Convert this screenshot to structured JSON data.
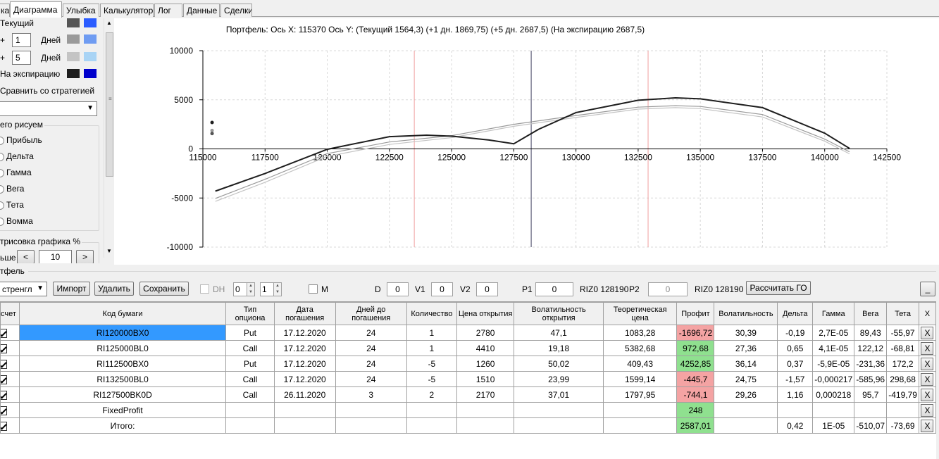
{
  "tabs": [
    "ка",
    "Диаграмма",
    "Улыбка",
    "Калькулятор",
    "Лог",
    "Данные",
    "Сделки"
  ],
  "active_tab": 1,
  "left_panel": {
    "current_label": "Текущий",
    "plus1_sign": "+",
    "plus1_value": "1",
    "plus1_unit": "Дней",
    "plus2_sign": "+",
    "plus2_value": "5",
    "plus2_unit": "Дней",
    "expiry_label": "На экспирацию",
    "compare_label": "Сравнить со стратегией",
    "draw_group_label": "его рисуем",
    "radio_items": [
      "Прибыль",
      "Дельта",
      "Гамма",
      "Вега",
      "Тета",
      "Вомма"
    ],
    "render_label": "трисовка графика %",
    "render_prefix": "ьше",
    "render_value": "10",
    "btn_less": "<",
    "btn_more": ">",
    "colors": {
      "current": [
        "#555555",
        "#2b5cff"
      ],
      "plus1": [
        "#9a9a9a",
        "#6f9cf2"
      ],
      "plus2": [
        "#c4c4c4",
        "#a9d4f5"
      ],
      "expiry": [
        "#1e1e1e",
        "#0000cc"
      ]
    }
  },
  "chart_data": {
    "type": "line",
    "title": "Портфель: Ось X: 115370 Ось Y:  (Текущий 1564,3)  (+1 дн. 1869,75)  (+5 дн. 2687,5)  (На экспирацию 2687,5)",
    "xlim": [
      115000,
      142500
    ],
    "ylim": [
      -10000,
      10000
    ],
    "x_ticks": [
      "115000",
      "117500",
      "120000",
      "122500",
      "125000",
      "127500",
      "130000",
      "132500",
      "135000",
      "137500",
      "140000",
      "142500"
    ],
    "y_ticks": [
      "10000",
      "5000",
      "0",
      "-5000",
      "-10000"
    ],
    "grid": true,
    "vertical_lines": [
      {
        "x": 123500,
        "color": "#f0a0a0"
      },
      {
        "x": 128200,
        "color": "#404060"
      },
      {
        "x": 132900,
        "color": "#f0a0a0"
      }
    ],
    "series": [
      {
        "color": "#1e1e1e",
        "x": [
          115500,
          117500,
          120000,
          122500,
          124000,
          125000,
          126500,
          127500,
          128500,
          130000,
          132500,
          134000,
          135000,
          137500,
          140000,
          141000
        ],
        "y": [
          -4300,
          -2500,
          -40,
          1250,
          1400,
          1300,
          900,
          520,
          2000,
          3700,
          4950,
          5200,
          5100,
          4200,
          1600,
          50
        ]
      },
      {
        "color": "#9a9a9a",
        "x": [
          115500,
          117500,
          120000,
          122500,
          125000,
          127500,
          130000,
          132500,
          134000,
          135000,
          137500,
          140000,
          141000
        ],
        "y": [
          -5050,
          -3100,
          -480,
          700,
          1350,
          2500,
          3400,
          4250,
          4400,
          4320,
          3500,
          1000,
          -300
        ]
      },
      {
        "color": "#c4c4c4",
        "x": [
          115500,
          117500,
          120000,
          122500,
          125000,
          127500,
          130000,
          132500,
          134000,
          135000,
          137500,
          140000,
          141000
        ],
        "y": [
          -5350,
          -3400,
          -760,
          450,
          1150,
          2300,
          3200,
          4050,
          4200,
          4100,
          3250,
          780,
          -500
        ]
      }
    ],
    "points": [
      {
        "x": 115370,
        "y": 2687.5,
        "color": "#1e1e1e"
      },
      {
        "x": 115370,
        "y": 1869.75,
        "color": "#9a9a9a"
      },
      {
        "x": 115370,
        "y": 1564.3,
        "color": "#555555"
      }
    ]
  },
  "portfolio": {
    "label": "тфель",
    "strategy_select": "стренгл",
    "btn_import": "Импорт",
    "btn_delete": "Удалить",
    "btn_save": "Сохранить",
    "dh_label": "DH",
    "spin1": "0",
    "spin2": "1",
    "m_label": "M",
    "d_label": "D",
    "d_value": "0",
    "v1_label": "V1",
    "v1_value": "0",
    "v2_label": "V2",
    "v2_value": "0",
    "p1_label": "P1",
    "p1_value": "0",
    "p1_ticker": "RIZ0 128190",
    "p2_label": "P2",
    "p2_value": "0",
    "p2_ticker": "RIZ0 128190",
    "btn_go": "Рассчитать ГО",
    "btn_min": "_"
  },
  "table": {
    "headers": [
      "счет",
      "Код бумаги",
      "Тип опциона",
      "Дата погашения",
      "Дней до погашения",
      "Количество",
      "Цена открытия",
      "Волатильность открытия",
      "Теоретическая цена",
      "Профит",
      "Волатильность",
      "Дельта",
      "Гамма",
      "Вега",
      "Тета",
      "X"
    ],
    "rows": [
      {
        "code": "RI120000BX0",
        "type": "Put",
        "date": "17.12.2020",
        "days": "24",
        "qty": "1",
        "price": "2780",
        "vol_open": "47,1",
        "theo": "1083,28",
        "profit": "-1696,72",
        "vol": "30,39",
        "delta": "-0,19",
        "gamma": "2,7E-05",
        "vega": "89,43",
        "theta": "-55,97",
        "x": "X"
      },
      {
        "code": "RI125000BL0",
        "type": "Call",
        "date": "17.12.2020",
        "days": "24",
        "qty": "1",
        "price": "4410",
        "vol_open": "19,18",
        "theo": "5382,68",
        "profit": "972,68",
        "vol": "27,36",
        "delta": "0,65",
        "gamma": "4,1E-05",
        "vega": "122,12",
        "theta": "-68,81",
        "x": "X"
      },
      {
        "code": "RI112500BX0",
        "type": "Put",
        "date": "17.12.2020",
        "days": "24",
        "qty": "-5",
        "price": "1260",
        "vol_open": "50,02",
        "theo": "409,43",
        "profit": "4252,85",
        "vol": "36,14",
        "delta": "0,37",
        "gamma": "-5,9E-05",
        "vega": "-231,36",
        "theta": "172,2",
        "x": "X"
      },
      {
        "code": "RI132500BL0",
        "type": "Call",
        "date": "17.12.2020",
        "days": "24",
        "qty": "-5",
        "price": "1510",
        "vol_open": "23,99",
        "theo": "1599,14",
        "profit": "-445,7",
        "vol": "24,75",
        "delta": "-1,57",
        "gamma": "-0,000217",
        "vega": "-585,96",
        "theta": "298,68",
        "x": "X"
      },
      {
        "code": "RI127500BK0D",
        "type": "Call",
        "date": "26.11.2020",
        "days": "3",
        "qty": "2",
        "price": "2170",
        "vol_open": "37,01",
        "theo": "1797,95",
        "profit": "-744,1",
        "vol": "29,26",
        "delta": "1,16",
        "gamma": "0,000218",
        "vega": "95,7",
        "theta": "-419,79",
        "x": "X"
      },
      {
        "code": "FixedProfit",
        "type": "",
        "date": "",
        "days": "",
        "qty": "",
        "price": "",
        "vol_open": "",
        "theo": "",
        "profit": "248",
        "vol": "",
        "delta": "",
        "gamma": "",
        "vega": "",
        "theta": "",
        "x": "X"
      },
      {
        "code": "Итого:",
        "type": "",
        "date": "",
        "days": "",
        "qty": "",
        "price": "",
        "vol_open": "",
        "theo": "",
        "profit": "2587,01",
        "vol": "",
        "delta": "0,42",
        "gamma": "1E-05",
        "vega": "-510,07",
        "theta": "-73,69",
        "x": "X"
      }
    ]
  }
}
